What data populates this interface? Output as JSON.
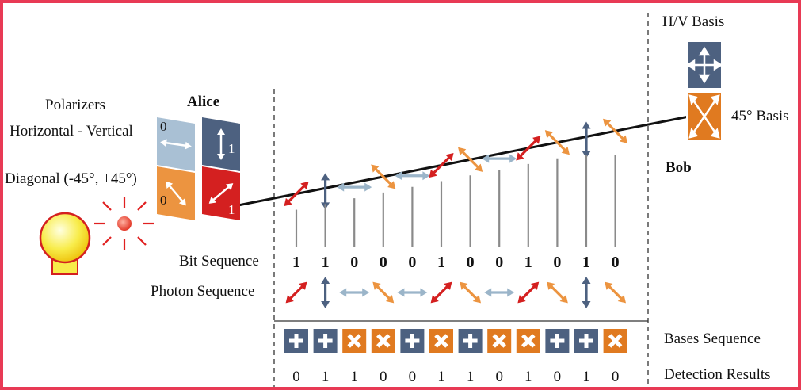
{
  "labels": {
    "polarizers": "Polarizers",
    "hv": "Horizontal - Vertical",
    "diagonal": "Diagonal (-45°, +45°)",
    "alice": "Alice",
    "bob": "Bob",
    "hv_basis": "H/V Basis",
    "deg45_basis": "45° Basis",
    "bit_sequence": "Bit Sequence",
    "photon_sequence": "Photon Sequence",
    "bases_sequence": "Bases Sequence",
    "detection_results": "Detection Results"
  },
  "alice_polarizers": [
    {
      "label": "0",
      "type": "horizontal",
      "color": "#a9c0d4"
    },
    {
      "label": "1",
      "type": "vertical",
      "color": "#4d6180"
    },
    {
      "label": "0",
      "type": "diag-down",
      "color": "#ec9440"
    },
    {
      "label": "1",
      "type": "diag-up",
      "color": "#d42020"
    }
  ],
  "bits": [
    "1",
    "1",
    "0",
    "0",
    "0",
    "1",
    "0",
    "0",
    "1",
    "0",
    "1",
    "0"
  ],
  "photons": [
    "diag-up",
    "vertical",
    "horizontal",
    "diag-down",
    "horizontal",
    "diag-up",
    "diag-down",
    "horizontal",
    "diag-up",
    "diag-down",
    "vertical",
    "diag-down"
  ],
  "bases": [
    "plus",
    "plus",
    "cross",
    "cross",
    "plus",
    "cross",
    "plus",
    "cross",
    "cross",
    "plus",
    "plus",
    "cross"
  ],
  "detection": [
    "0",
    "1",
    "1",
    "0",
    "0",
    "1",
    "1",
    "0",
    "1",
    "0",
    "1",
    "0"
  ],
  "colors": {
    "frame": "#e83a55",
    "plus_basis": "#4d6180",
    "cross_basis": "#e07a20",
    "diag_up": "#d42020",
    "vertical": "#4d6180",
    "horizontal": "#9bb5c9",
    "diag_down": "#ec9440",
    "bulb": "#f5e020",
    "bulb_outline": "#d42020"
  }
}
